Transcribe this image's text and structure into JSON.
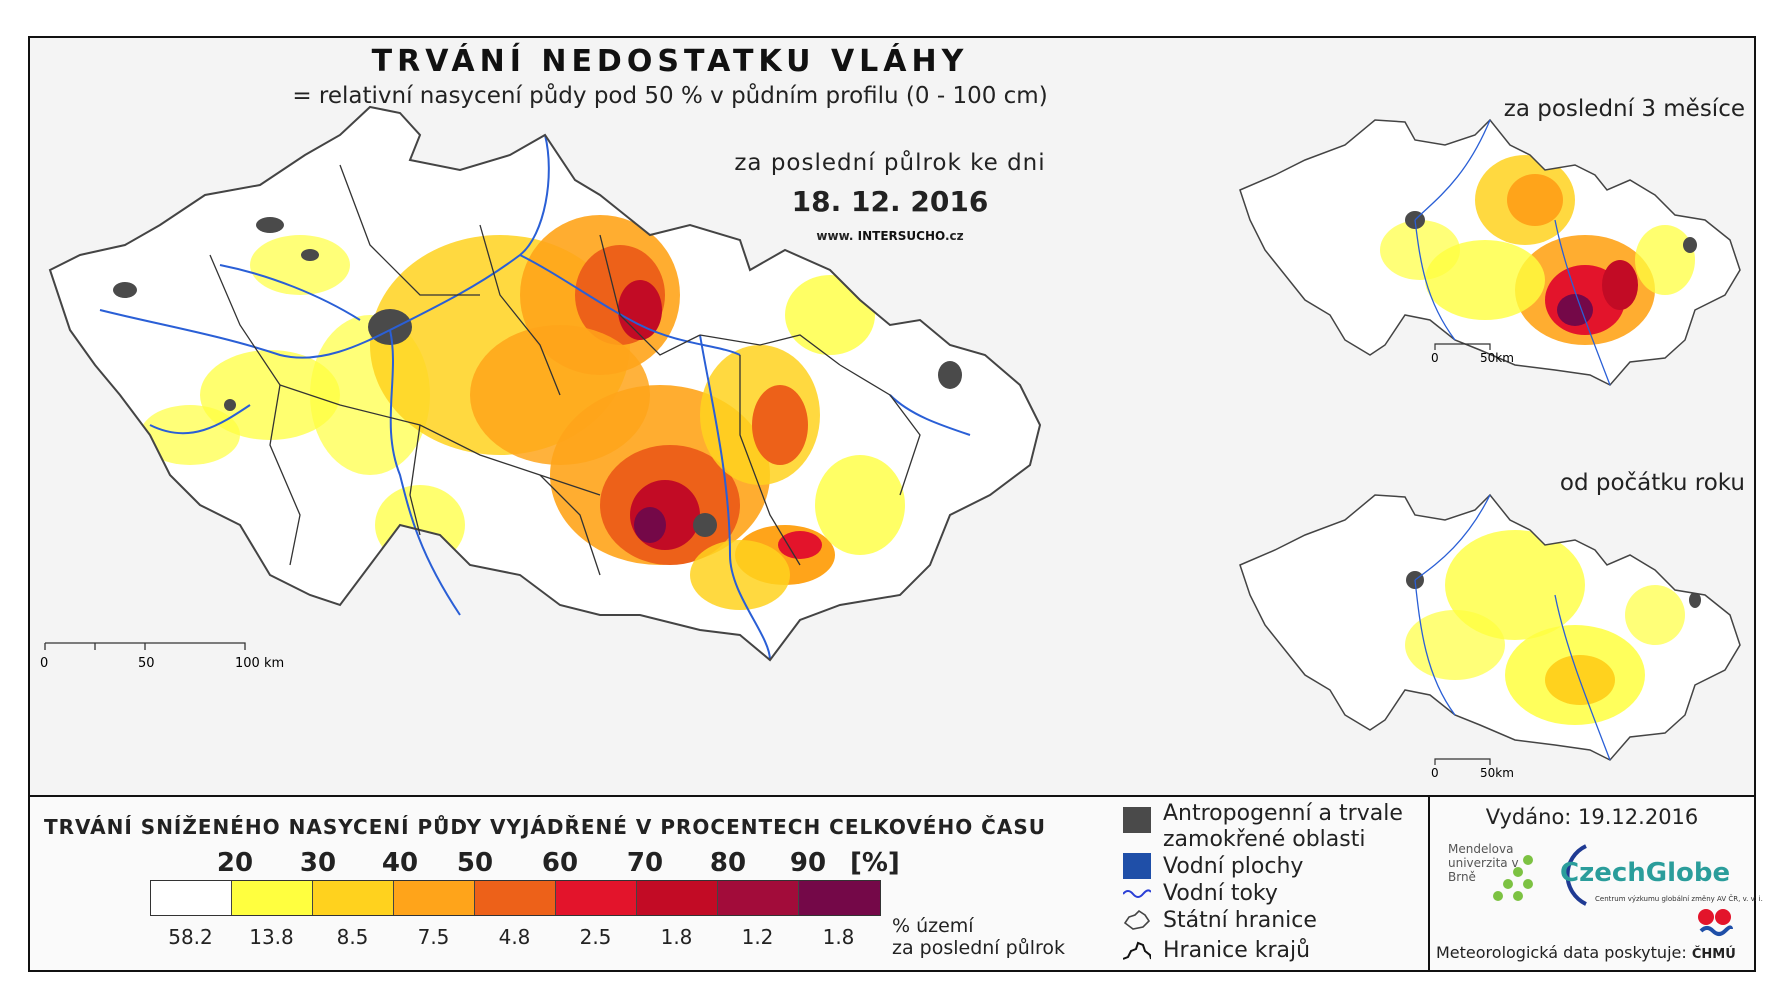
{
  "header": {
    "title": "TRVÁNÍ NEDOSTATKU VLÁHY",
    "subtitle": "= relativní nasycení půdy pod 50 % v půdním profilu (0 - 100 cm)",
    "period_label": "za poslední půlrok ke dni",
    "date": "18. 12. 2016",
    "website_prefix": "www.",
    "website_brand": "INTERSUCHO",
    "website_suffix": ".cz"
  },
  "insets": {
    "last3months": {
      "title": "za poslední 3 měsíce",
      "scale_zero": "0",
      "scale_end": "50km"
    },
    "since_year_start": {
      "title": "od počátku roku",
      "scale_zero": "0",
      "scale_end": "50km"
    }
  },
  "main_map": {
    "scale_labels": [
      "0",
      "50",
      "100 km"
    ]
  },
  "legend": {
    "title": "TRVÁNÍ SNÍŽENÉHO NASYCENÍ PŮDY VYJÁDŘENÉ V PROCENTECH CELKOVÉHO ČASU",
    "bin_labels": [
      "20",
      "30",
      "40",
      "50",
      "60",
      "70",
      "80",
      "90"
    ],
    "unit": "[%]",
    "colors": [
      "#ffffff",
      "#ffff3f",
      "#ffd21e",
      "#ffa41a",
      "#ed6119",
      "#e3142b",
      "#c20b25",
      "#a20c3a",
      "#740848"
    ],
    "area_percentages": [
      "58.2",
      "13.8",
      "8.5",
      "7.5",
      "4.8",
      "2.5",
      "1.8",
      "1.2",
      "1.8"
    ],
    "area_caption_line1": "% území",
    "area_caption_line2": "za poslední půlrok"
  },
  "map_key": {
    "anthropogenic": "Antropogenní a trvale",
    "anthropogenic_line2": "zamokřené oblasti",
    "water_bodies": "Vodní plochy",
    "rivers": "Vodní toky",
    "state_border": "Státní hranice",
    "region_border": "Hranice krajů",
    "colors": {
      "anthropogenic": "#4a4a4a",
      "water": "#1f4fa8",
      "river": "#2a3fd6"
    }
  },
  "credits": {
    "issued": "Vydáno: 19.12.2016",
    "mendel": "Mendelova univerzita v Brně",
    "czechglobe": "CzechGlobe",
    "czechglobe_sub": "Centrum výzkumu globální změny AV ČR, v. v. i.",
    "met_data": "Meteorologická data poskytuje:",
    "chmu": "ČHMÚ"
  }
}
